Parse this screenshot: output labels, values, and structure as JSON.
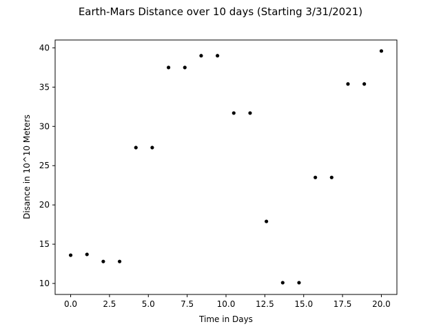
{
  "chart_data": {
    "type": "scatter",
    "title": "Earth-Mars Distance over 10 days (Starting 3/31/2021)",
    "xlabel": "Time in Days",
    "ylabel": "Disance in 10^10 Meters",
    "xlim": [
      -1.0,
      21.0
    ],
    "ylim": [
      8.6,
      41.0
    ],
    "xticks": [
      0.0,
      2.5,
      5.0,
      7.5,
      10.0,
      12.5,
      15.0,
      17.5,
      20.0
    ],
    "xtick_labels": [
      "0.0",
      "2.5",
      "5.0",
      "7.5",
      "10.0",
      "12.5",
      "15.0",
      "17.5",
      "20.0"
    ],
    "yticks": [
      10,
      15,
      20,
      25,
      30,
      35,
      40
    ],
    "ytick_labels": [
      "10",
      "15",
      "20",
      "25",
      "30",
      "35",
      "40"
    ],
    "grid": false,
    "marker_color": "#000000",
    "points": [
      {
        "x": 0.0,
        "y": 13.6
      },
      {
        "x": 1.05,
        "y": 13.7
      },
      {
        "x": 2.1,
        "y": 12.8
      },
      {
        "x": 3.15,
        "y": 12.8
      },
      {
        "x": 4.2,
        "y": 27.3
      },
      {
        "x": 5.25,
        "y": 27.3
      },
      {
        "x": 6.3,
        "y": 37.5
      },
      {
        "x": 7.35,
        "y": 37.5
      },
      {
        "x": 8.4,
        "y": 39.0
      },
      {
        "x": 9.45,
        "y": 39.0
      },
      {
        "x": 10.5,
        "y": 31.7
      },
      {
        "x": 11.55,
        "y": 31.7
      },
      {
        "x": 12.6,
        "y": 17.9
      },
      {
        "x": 13.65,
        "y": 10.1
      },
      {
        "x": 14.7,
        "y": 10.1
      },
      {
        "x": 15.75,
        "y": 23.5
      },
      {
        "x": 16.8,
        "y": 23.5
      },
      {
        "x": 17.85,
        "y": 35.4
      },
      {
        "x": 18.9,
        "y": 35.4
      },
      {
        "x": 20.0,
        "y": 39.6
      }
    ]
  }
}
